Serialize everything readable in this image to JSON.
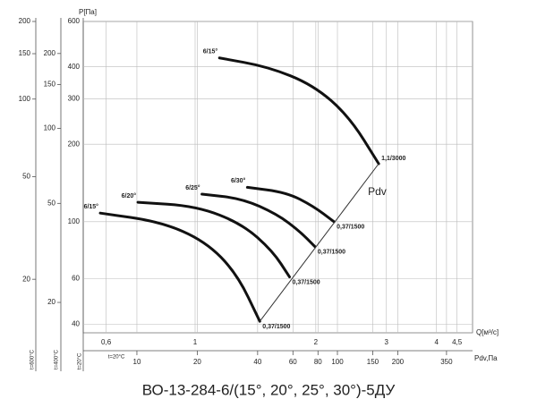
{
  "chart_data": {
    "type": "line",
    "title": "ВО-13-284-6/(15°, 20°, 25°, 30°)-5ДУ",
    "y_label": "P[Па]",
    "x_label": "Q[м³/с]",
    "x2_label": "Pdv,Па",
    "log_x": true,
    "log_y": true,
    "grid": true,
    "xlim": [
      0.526,
      4.92
    ],
    "xticks": [
      {
        "value": 0.6,
        "label": "0,6"
      },
      1,
      2,
      3,
      4,
      {
        "value": 4.5,
        "label": "4,5"
      }
    ],
    "x2lim": [
      5.4,
      472
    ],
    "x2ticks": [
      10,
      20,
      40,
      60,
      80,
      100,
      150,
      200,
      350
    ],
    "ylim": [
      37,
      600
    ],
    "yticks": [
      40,
      60,
      100,
      200,
      300,
      400,
      600
    ],
    "extra_y_axes": [
      {
        "label": "t=600°C",
        "ylim": [
          12.4,
          200
        ],
        "yticks": [
          20,
          50,
          100,
          150,
          200
        ]
      },
      {
        "label": "t=400°C",
        "ylim": [
          15.1,
          269
        ],
        "yticks": [
          20,
          50,
          100,
          150,
          200
        ]
      }
    ],
    "temp_labels": [
      "t=20°C",
      "t=20°C"
    ],
    "series": [
      {
        "name": "6/15°",
        "color": "#111111",
        "end_label": "1,1/3000",
        "x": [
          1.15,
          1.52,
          1.97,
          2.42,
          2.87
        ],
        "values": [
          433,
          400,
          340,
          257,
          168
        ]
      },
      {
        "name": "6/15°",
        "color": "#111111",
        "end_label": "0,37/1500",
        "x": [
          0.58,
          0.82,
          1.06,
          1.27,
          1.45
        ],
        "values": [
          108,
          100,
          84,
          63,
          41
        ]
      },
      {
        "name": "6/20°",
        "color": "#111111",
        "end_label": "0,37/1500",
        "x": [
          0.72,
          1.01,
          1.31,
          1.56,
          1.72
        ],
        "values": [
          119,
          115,
          98,
          77,
          61
        ]
      },
      {
        "name": "6/25°",
        "color": "#111111",
        "end_label": "0,37/1500",
        "x": [
          1.04,
          1.31,
          1.6,
          1.82,
          1.99
        ],
        "values": [
          128,
          123,
          107,
          92,
          80
        ]
      },
      {
        "name": "6/30°",
        "color": "#111111",
        "end_label": "0,37/1500",
        "x": [
          1.35,
          1.69,
          1.97,
          2.22
        ],
        "values": [
          136,
          130,
          115,
          100
        ]
      },
      {
        "name": "Pdv",
        "color": "#333333",
        "x": [
          1.45,
          2.87
        ],
        "values": [
          41,
          168
        ]
      }
    ]
  }
}
